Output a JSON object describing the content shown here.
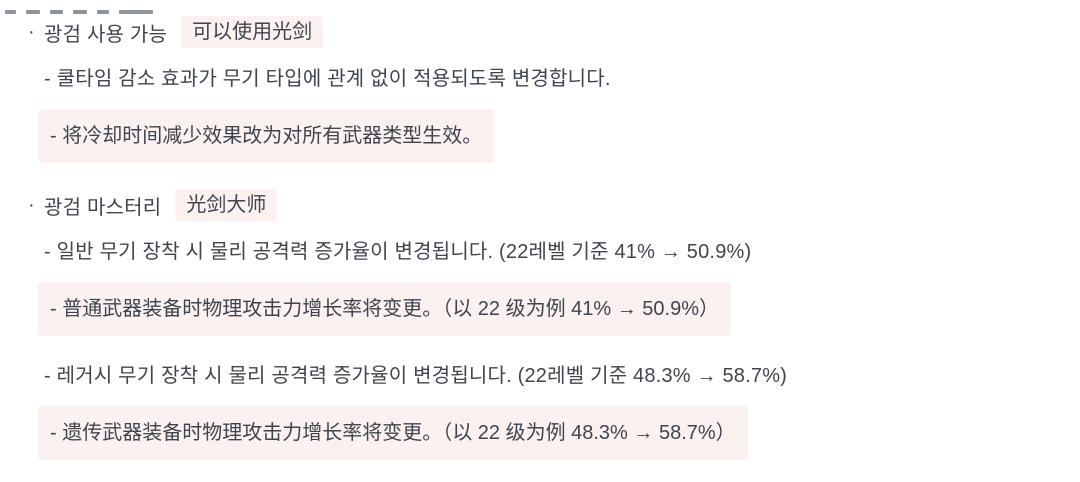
{
  "page": {
    "background_color": "#ffffff",
    "text_color": "#40444e",
    "highlight_color": "#faf1f0"
  },
  "bullet": "·",
  "sections": [
    {
      "heading_ko": "광검 사용 가능",
      "heading_zh": "可以使用光剑",
      "items": [
        {
          "type": "korean-line",
          "text": "- 쿨타임 감소 효과가 무기 타입에 관계 없이 적용되도록 변경합니다."
        },
        {
          "type": "chinese-block",
          "text": "- 将冷却时间减少效果改为对所有武器类型生效。"
        }
      ]
    },
    {
      "heading_ko": "광검 마스터리",
      "heading_zh": "光剑大师",
      "items": [
        {
          "type": "korean-line",
          "text": "- 일반 무기 장착 시 물리 공격력 증가율이 변경됩니다. (22레벨 기준 41% → 50.9%)"
        },
        {
          "type": "chinese-block",
          "text": "- 普通武器装备时物理攻击力增长率将变更。（以 22 级为例 41% → 50.9%）"
        },
        {
          "type": "korean-line",
          "text": "- 레거시 무기 장착 시 물리 공격력 증가율이 변경됩니다. (22레벨 기준 48.3% → 58.7%)"
        },
        {
          "type": "chinese-block",
          "text": "- 遗传武器装备时物理攻击力增长率将变更。（以 22 级为例 48.3% → 58.7%）"
        }
      ]
    }
  ]
}
